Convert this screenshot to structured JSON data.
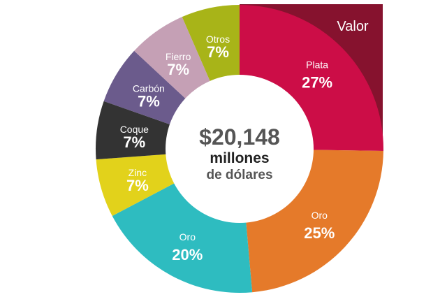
{
  "chart_data": {
    "type": "pie",
    "title": "Valor",
    "center": {
      "amount": "$20,148",
      "unit_line1": "millones",
      "unit_line2": "de dólares"
    },
    "slices": [
      {
        "name": "Plata",
        "label": "27%",
        "value": 27,
        "color": "#cc0d47"
      },
      {
        "name": "Oro",
        "label": "25%",
        "value": 25,
        "color": "#e57a2a"
      },
      {
        "name": "Oro",
        "label": "20%",
        "value": 20,
        "color": "#2ebcc0"
      },
      {
        "name": "Zinc",
        "label": "7%",
        "value": 7,
        "color": "#e2d21b"
      },
      {
        "name": "Coque",
        "label": "7%",
        "value": 7,
        "color": "#333333"
      },
      {
        "name": "Carbón",
        "label": "7%",
        "value": 7,
        "color": "#6b5b8c"
      },
      {
        "name": "Fierro",
        "label": "7%",
        "value": 7,
        "color": "#c5a0b5"
      },
      {
        "name": "Otros",
        "label": "7%",
        "value": 7,
        "color": "#a8b418"
      }
    ],
    "colors": {
      "valor_panel": "#86122e",
      "center_hole": "#ffffff",
      "amount_color": "#555555",
      "unit1_color": "#222222",
      "unit2_color": "#555555"
    }
  }
}
